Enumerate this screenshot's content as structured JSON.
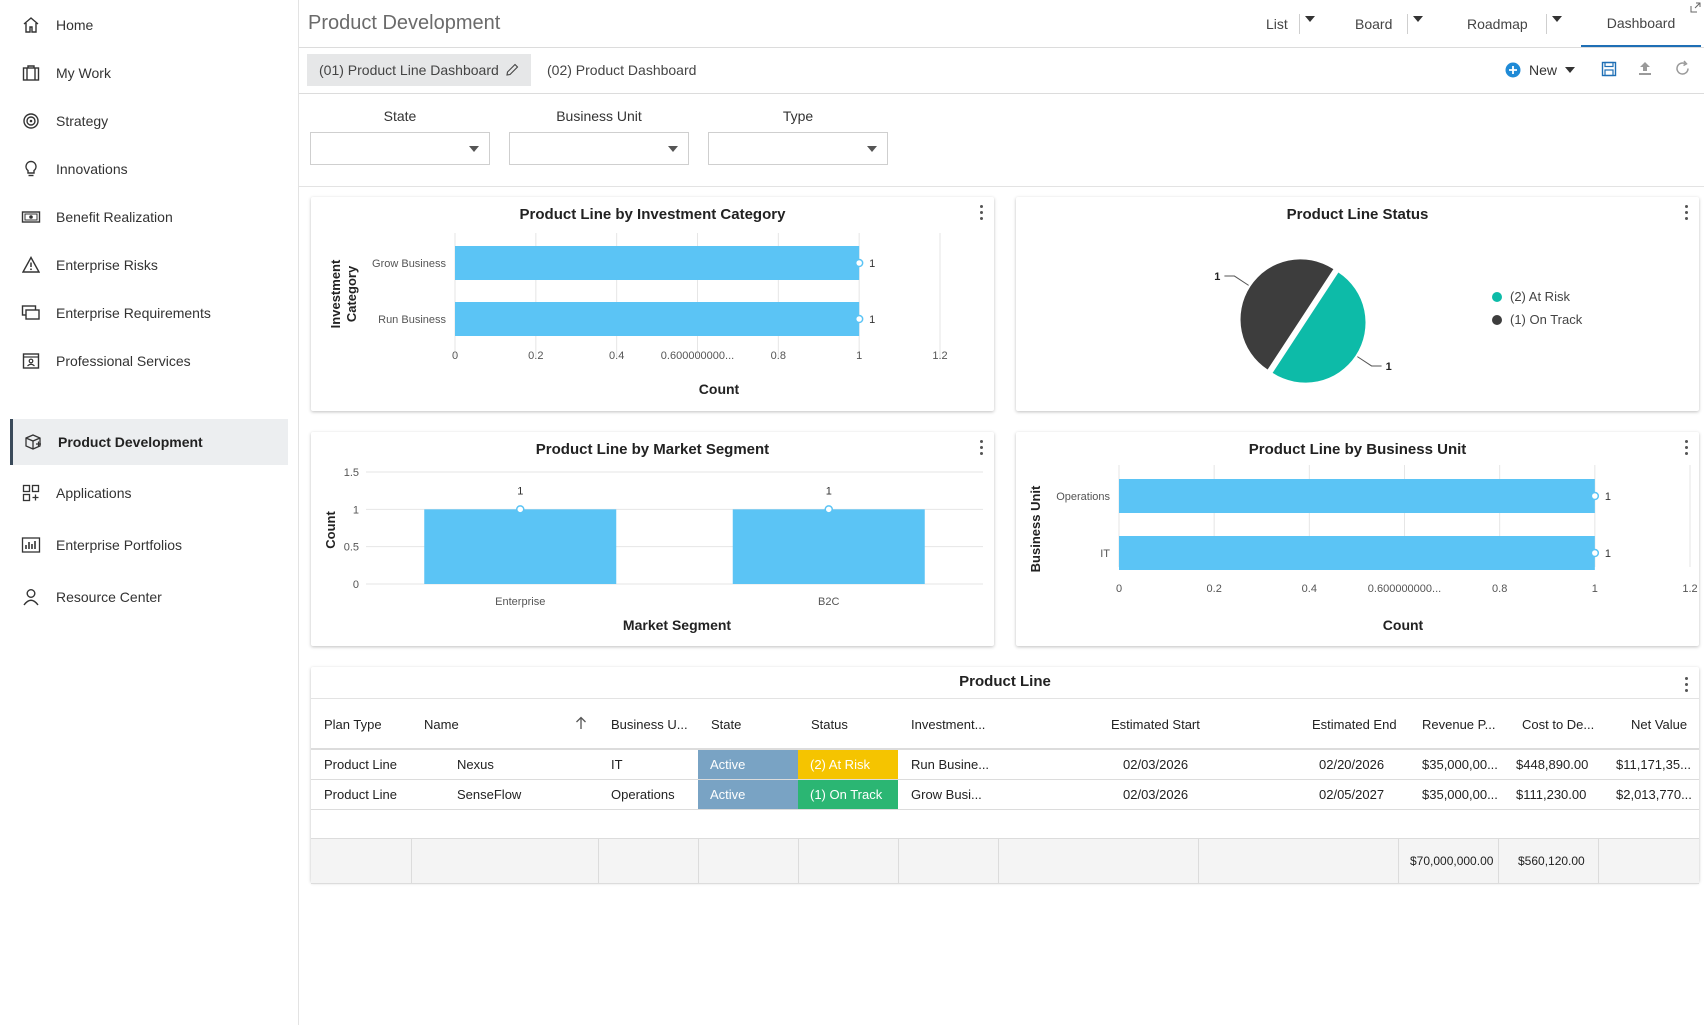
{
  "sidebar": {
    "items": [
      {
        "label": "Home",
        "icon": "home-icon"
      },
      {
        "label": "My Work",
        "icon": "briefcase-icon"
      },
      {
        "label": "Strategy",
        "icon": "target-icon"
      },
      {
        "label": "Innovations",
        "icon": "lightbulb-icon"
      },
      {
        "label": "Benefit Realization",
        "icon": "money-icon"
      },
      {
        "label": "Enterprise Risks",
        "icon": "warning-icon"
      },
      {
        "label": "Enterprise Requirements",
        "icon": "monitor-icon"
      },
      {
        "label": "Professional Services",
        "icon": "id-card-icon"
      },
      {
        "label": "Product Development",
        "icon": "package-icon",
        "active": true
      },
      {
        "label": "Applications",
        "icon": "apps-grid-icon"
      },
      {
        "label": "Enterprise Portfolios",
        "icon": "bar-chart-icon"
      },
      {
        "label": "Resource Center",
        "icon": "person-icon"
      }
    ]
  },
  "header": {
    "title": "Product Development",
    "views": [
      "List",
      "Board",
      "Roadmap",
      "Dashboard"
    ],
    "active_view": "Dashboard"
  },
  "dashboards": {
    "tabs": [
      "(01) Product Line Dashboard",
      "(02) Product Dashboard"
    ],
    "new_label": "New"
  },
  "filters": {
    "state_label": "State",
    "business_unit_label": "Business Unit",
    "type_label": "Type"
  },
  "charts": {
    "investment": {
      "title": "Product Line by Investment Category",
      "xlabel": "Count",
      "ylabel_line1": "Investment",
      "ylabel_line2": "Category",
      "ticks": [
        "0",
        "0.2",
        "0.4",
        "0.600000000...",
        "0.8",
        "1",
        "1.2"
      ]
    },
    "status": {
      "title": "Product Line Status"
    },
    "market": {
      "title": "Product Line by Market Segment",
      "xlabel": "Market Segment",
      "ylabel": "Count",
      "yticks": [
        "1.5",
        "1",
        "0.5",
        "0"
      ]
    },
    "business_unit": {
      "title": "Product Line by Business Unit",
      "xlabel": "Count",
      "ylabel": "Business Unit",
      "ticks": [
        "0",
        "0.2",
        "0.4",
        "0.600000000...",
        "0.8",
        "1",
        "1.2"
      ]
    }
  },
  "chart_data": [
    {
      "type": "bar",
      "orientation": "horizontal",
      "title": "Product Line by Investment Category",
      "xlabel": "Count",
      "ylabel": "Investment Category",
      "categories": [
        "Grow Business",
        "Run Business"
      ],
      "values": [
        1,
        1
      ],
      "xlim": [
        0,
        1.2
      ],
      "color": "#5bc4f5"
    },
    {
      "type": "pie",
      "title": "Product Line Status",
      "labels": [
        "(2) At Risk",
        "(1) On Track"
      ],
      "values": [
        1,
        1
      ],
      "colors": [
        "#0dbba8",
        "#3d3d3d"
      ],
      "legend": "right"
    },
    {
      "type": "bar",
      "title": "Product Line by Market Segment",
      "xlabel": "Market Segment",
      "ylabel": "Count",
      "categories": [
        "Enterprise",
        "B2C"
      ],
      "values": [
        1,
        1
      ],
      "ylim": [
        0,
        1.5
      ],
      "color": "#5bc4f5"
    },
    {
      "type": "bar",
      "orientation": "horizontal",
      "title": "Product Line by Business Unit",
      "xlabel": "Count",
      "ylabel": "Business Unit",
      "categories": [
        "Operations",
        "IT"
      ],
      "values": [
        1,
        1
      ],
      "xlim": [
        0,
        1.2
      ],
      "color": "#5bc4f5"
    }
  ],
  "table": {
    "title": "Product Line",
    "columns": [
      "Plan Type",
      "Name",
      "Business U...",
      "State",
      "Status",
      "Investment...",
      "Estimated Start",
      "Estimated End",
      "Revenue P...",
      "Cost to De...",
      "Net Value"
    ],
    "rows": [
      {
        "plan_type": "Product Line",
        "name": "Nexus",
        "business_unit": "IT",
        "state": "Active",
        "status": "(2) At Risk",
        "status_color": "#f5c400",
        "investment": "Run Busine...",
        "start": "02/03/2026",
        "end": "02/20/2026",
        "revenue": "$35,000,00...",
        "cost": "$448,890.00",
        "net": "$11,171,35..."
      },
      {
        "plan_type": "Product Line",
        "name": "SenseFlow",
        "business_unit": "Operations",
        "state": "Active",
        "status": "(1) On Track",
        "status_color": "#2bb673",
        "investment": "Grow Busi...",
        "start": "02/03/2026",
        "end": "02/05/2027",
        "revenue": "$35,000,00...",
        "cost": "$111,230.00",
        "net": "$2,013,770..."
      }
    ],
    "totals": {
      "revenue": "$70,000,000.00",
      "cost": "$560,120.00"
    }
  },
  "colors": {
    "state_active": "#79a3c4",
    "bar": "#5bc4f5",
    "accent": "#1f6fb5"
  }
}
